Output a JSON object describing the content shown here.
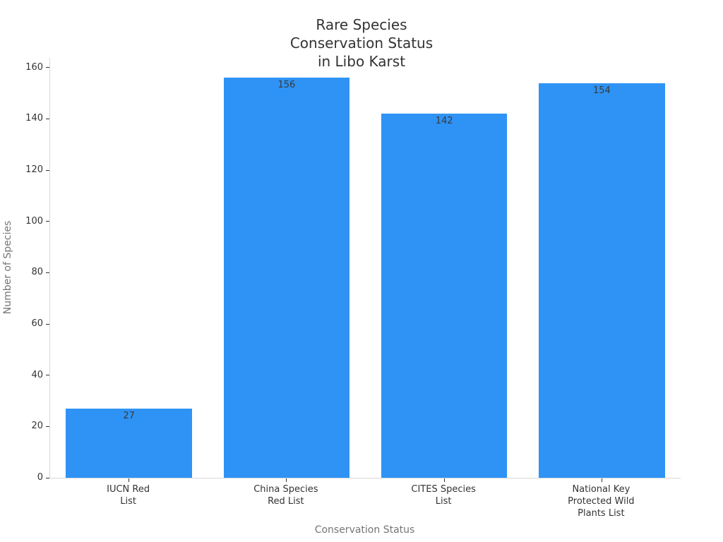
{
  "chart_data": {
    "type": "bar",
    "title": "Rare Species\nConservation Status\nin Libo Karst",
    "xlabel": "Conservation Status",
    "ylabel": "Number of Species",
    "categories": [
      "IUCN Red\nList",
      "China Species\nRed List",
      "CITES Species\nList",
      "National Key\nProtected Wild\nPlants List"
    ],
    "values": [
      27,
      156,
      142,
      154
    ],
    "value_labels": [
      "27",
      "156",
      "142",
      "154"
    ],
    "yticks": [
      0,
      20,
      40,
      60,
      80,
      100,
      120,
      140,
      160
    ],
    "ylim": [
      0,
      163.8
    ],
    "bar_width_fraction": 0.8,
    "grid": false,
    "legend_position": "none",
    "colors": {
      "bar_fill": "#2E93F5",
      "title_text": "#333333",
      "tick_text": "#333333",
      "axis_label_text": "#757575",
      "value_label_text": "#3a3a3a",
      "spine": "#d8d8d8",
      "tick_mark": "#333333",
      "background": "#ffffff"
    }
  }
}
